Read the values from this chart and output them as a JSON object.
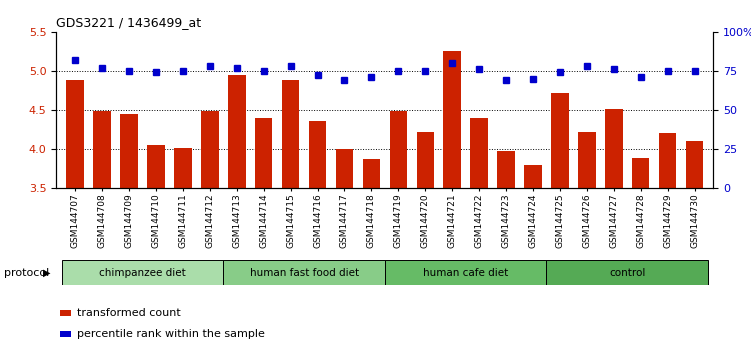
{
  "title": "GDS3221 / 1436499_at",
  "samples": [
    "GSM144707",
    "GSM144708",
    "GSM144709",
    "GSM144710",
    "GSM144711",
    "GSM144712",
    "GSM144713",
    "GSM144714",
    "GSM144715",
    "GSM144716",
    "GSM144717",
    "GSM144718",
    "GSM144719",
    "GSM144720",
    "GSM144721",
    "GSM144722",
    "GSM144723",
    "GSM144724",
    "GSM144725",
    "GSM144726",
    "GSM144727",
    "GSM144728",
    "GSM144729",
    "GSM144730"
  ],
  "bar_values": [
    4.88,
    4.49,
    4.44,
    4.05,
    4.01,
    4.49,
    4.94,
    4.39,
    4.88,
    4.35,
    3.99,
    3.87,
    4.49,
    4.22,
    5.25,
    4.4,
    3.97,
    3.79,
    4.72,
    4.22,
    4.51,
    3.88,
    4.2,
    4.1
  ],
  "percentile_values": [
    82,
    77,
    75,
    74,
    75,
    78,
    77,
    75,
    78,
    72,
    69,
    71,
    75,
    75,
    80,
    76,
    69,
    70,
    74,
    78,
    76,
    71,
    75,
    75
  ],
  "groups": [
    {
      "label": "chimpanzee diet",
      "start": 0,
      "end": 6,
      "color": "#aaddaa"
    },
    {
      "label": "human fast food diet",
      "start": 6,
      "end": 12,
      "color": "#88cc88"
    },
    {
      "label": "human cafe diet",
      "start": 12,
      "end": 18,
      "color": "#66bb66"
    },
    {
      "label": "control",
      "start": 18,
      "end": 24,
      "color": "#55aa55"
    }
  ],
  "ylim_left": [
    3.5,
    5.5
  ],
  "ylim_right": [
    0,
    100
  ],
  "bar_color": "#cc2200",
  "dot_color": "#0000cc",
  "background_color": "#ffffff",
  "yticks_left": [
    3.5,
    4.0,
    4.5,
    5.0,
    5.5
  ],
  "yticks_right": [
    0,
    25,
    50,
    75,
    100
  ],
  "ytick_labels_right": [
    "0",
    "25",
    "50",
    "75",
    "100%"
  ],
  "gridline_vals": [
    4.0,
    4.5,
    5.0
  ]
}
